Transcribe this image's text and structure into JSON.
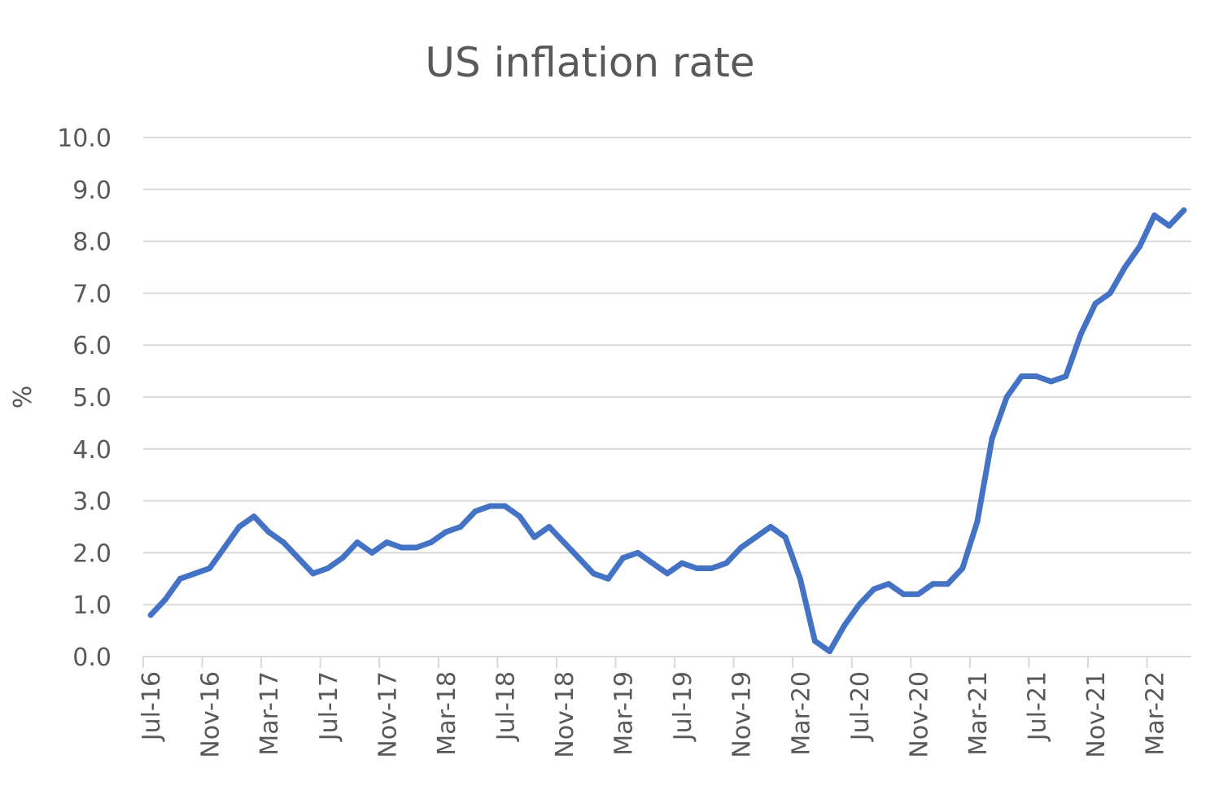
{
  "chart_data": {
    "type": "line",
    "title": "US inflation rate",
    "xlabel": "",
    "ylabel": "%",
    "ylim": [
      0,
      10
    ],
    "yticks": [
      "0.0",
      "1.0",
      "2.0",
      "3.0",
      "4.0",
      "5.0",
      "6.0",
      "7.0",
      "8.0",
      "9.0",
      "10.0"
    ],
    "xtick_labels": [
      "Jul-16",
      "Nov-16",
      "Mar-17",
      "Jul-17",
      "Nov-17",
      "Mar-18",
      "Jul-18",
      "Nov-18",
      "Mar-19",
      "Jul-19",
      "Nov-19",
      "Mar-20",
      "Jul-20",
      "Nov-20",
      "Mar-21",
      "Jul-21",
      "Nov-21",
      "Mar-22"
    ],
    "grid": true,
    "legend": "none",
    "colors": {
      "series": "#4472c4"
    },
    "series": [
      {
        "name": "US inflation rate",
        "x": [
          "Jul-16",
          "Aug-16",
          "Sep-16",
          "Oct-16",
          "Nov-16",
          "Dec-16",
          "Jan-17",
          "Feb-17",
          "Mar-17",
          "Apr-17",
          "May-17",
          "Jun-17",
          "Jul-17",
          "Aug-17",
          "Sep-17",
          "Oct-17",
          "Nov-17",
          "Dec-17",
          "Jan-18",
          "Feb-18",
          "Mar-18",
          "Apr-18",
          "May-18",
          "Jun-18",
          "Jul-18",
          "Aug-18",
          "Sep-18",
          "Oct-18",
          "Nov-18",
          "Dec-18",
          "Jan-19",
          "Feb-19",
          "Mar-19",
          "Apr-19",
          "May-19",
          "Jun-19",
          "Jul-19",
          "Aug-19",
          "Sep-19",
          "Oct-19",
          "Nov-19",
          "Dec-19",
          "Jan-20",
          "Feb-20",
          "Mar-20",
          "Apr-20",
          "May-20",
          "Jun-20",
          "Jul-20",
          "Aug-20",
          "Sep-20",
          "Oct-20",
          "Nov-20",
          "Dec-20",
          "Jan-21",
          "Feb-21",
          "Mar-21",
          "Apr-21",
          "May-21",
          "Jun-21",
          "Jul-21",
          "Aug-21",
          "Sep-21",
          "Oct-21",
          "Nov-21",
          "Dec-21",
          "Jan-22",
          "Feb-22",
          "Mar-22",
          "Apr-22",
          "May-22"
        ],
        "values": [
          0.8,
          1.1,
          1.5,
          1.6,
          1.7,
          2.1,
          2.5,
          2.7,
          2.4,
          2.2,
          1.9,
          1.6,
          1.7,
          1.9,
          2.2,
          2.0,
          2.2,
          2.1,
          2.1,
          2.2,
          2.4,
          2.5,
          2.8,
          2.9,
          2.9,
          2.7,
          2.3,
          2.5,
          2.2,
          1.9,
          1.6,
          1.5,
          1.9,
          2.0,
          1.8,
          1.6,
          1.8,
          1.7,
          1.7,
          1.8,
          2.1,
          2.3,
          2.5,
          2.3,
          1.5,
          0.3,
          0.1,
          0.6,
          1.0,
          1.3,
          1.4,
          1.2,
          1.2,
          1.4,
          1.4,
          1.7,
          2.6,
          4.2,
          5.0,
          5.4,
          5.4,
          5.3,
          5.4,
          6.2,
          6.8,
          7.0,
          7.5,
          7.9,
          8.5,
          8.3,
          8.6
        ]
      }
    ]
  }
}
